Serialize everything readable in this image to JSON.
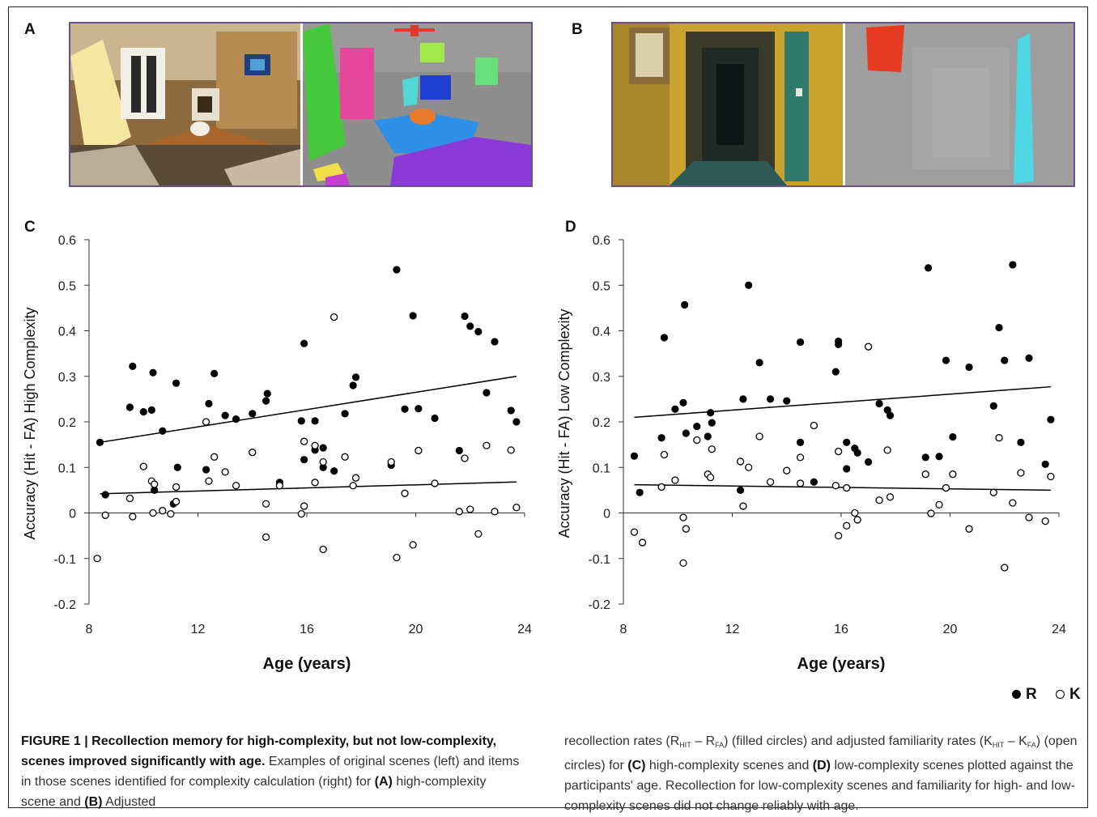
{
  "panels": {
    "a": {
      "letter": "A"
    },
    "b": {
      "letter": "B"
    },
    "c": {
      "letter": "C"
    },
    "d": {
      "letter": "D"
    }
  },
  "legend": {
    "r_label": "R",
    "k_label": "K"
  },
  "colors": {
    "filled": "#000000",
    "open_stroke": "#000000",
    "axis": "#333333",
    "photo_border": "#6a4f8f"
  },
  "caption": {
    "fig_label": "FIGURE 1 | ",
    "bold_title": "Recollection memory for high-complexity, but not low-complexity, scenes improved significantly with age.",
    "text1": " Examples of original scenes (left) and items in those scenes identified for complexity calculation (right) for ",
    "A_ref": "(A)",
    "text2": " high-complexity scene and ",
    "B_ref": "(B)",
    "text3": " low-complexity scene. Adjusted recollection rates (R",
    "sub_hit1": "HIT",
    "text4": " – R",
    "sub_fa1": "FA",
    "text5": ") (filled circles) and adjusted familiarity rates (K",
    "sub_hit2": "HIT",
    "text6": " – K",
    "sub_fa2": "FA",
    "text7": ") (open circles) for ",
    "C_ref": "(C)",
    "text8": " high-complexity scenes and ",
    "D_ref": "(D)",
    "text9": " low-complexity scenes plotted against the participants' age. Recollection for low-complexity scenes and familiarity for high- and low-complexity scenes did not change reliably with age."
  },
  "chart_data": [
    {
      "panel": "C",
      "type": "scatter",
      "xlabel": "Age (years)",
      "ylabel": "Accuracy (Hit - FA) High Complexity",
      "xlim": [
        8,
        24
      ],
      "ylim": [
        -0.2,
        0.6
      ],
      "xticks": [
        "8",
        "12",
        "16",
        "20",
        "24"
      ],
      "yticks": [
        "0.6",
        "0.5",
        "0.4",
        "0.3",
        "0.2",
        "0.1",
        "0",
        "-0.1",
        "-0.2"
      ],
      "series": [
        {
          "name": "R",
          "marker": "filled",
          "points": [
            [
              8.4,
              0.155
            ],
            [
              8.6,
              0.04
            ],
            [
              9.5,
              0.232
            ],
            [
              9.6,
              0.322
            ],
            [
              10.0,
              0.222
            ],
            [
              10.3,
              0.226
            ],
            [
              10.35,
              0.308
            ],
            [
              10.4,
              0.05
            ],
            [
              10.7,
              0.18
            ],
            [
              11.1,
              0.02
            ],
            [
              11.2,
              0.285
            ],
            [
              11.25,
              0.1
            ],
            [
              12.3,
              0.095
            ],
            [
              12.4,
              0.24
            ],
            [
              12.6,
              0.306
            ],
            [
              13.0,
              0.214
            ],
            [
              13.4,
              0.206
            ],
            [
              14.0,
              0.218
            ],
            [
              14.5,
              0.246
            ],
            [
              14.55,
              0.262
            ],
            [
              15.0,
              0.067
            ],
            [
              15.8,
              0.202
            ],
            [
              15.9,
              0.372
            ],
            [
              15.9,
              0.117
            ],
            [
              16.3,
              0.138
            ],
            [
              16.3,
              0.202
            ],
            [
              16.6,
              0.143
            ],
            [
              16.6,
              0.1
            ],
            [
              17.0,
              0.092
            ],
            [
              17.4,
              0.218
            ],
            [
              17.7,
              0.28
            ],
            [
              17.8,
              0.298
            ],
            [
              19.1,
              0.105
            ],
            [
              19.3,
              0.534
            ],
            [
              19.6,
              0.228
            ],
            [
              19.9,
              0.433
            ],
            [
              20.1,
              0.229
            ],
            [
              20.7,
              0.208
            ],
            [
              21.6,
              0.137
            ],
            [
              21.8,
              0.432
            ],
            [
              22.0,
              0.41
            ],
            [
              22.3,
              0.398
            ],
            [
              22.6,
              0.264
            ],
            [
              22.9,
              0.376
            ],
            [
              23.5,
              0.225
            ],
            [
              23.7,
              0.2
            ]
          ]
        },
        {
          "name": "K",
          "marker": "open",
          "points": [
            [
              8.3,
              -0.1
            ],
            [
              8.6,
              -0.005
            ],
            [
              9.5,
              0.032
            ],
            [
              9.6,
              -0.008
            ],
            [
              10.0,
              0.102
            ],
            [
              10.3,
              0.07
            ],
            [
              10.35,
              0.0
            ],
            [
              10.4,
              0.063
            ],
            [
              10.7,
              0.005
            ],
            [
              11.0,
              -0.002
            ],
            [
              11.2,
              0.025
            ],
            [
              11.2,
              0.057
            ],
            [
              12.3,
              0.2
            ],
            [
              12.4,
              0.07
            ],
            [
              12.6,
              0.123
            ],
            [
              13.0,
              0.09
            ],
            [
              13.4,
              0.06
            ],
            [
              14.0,
              0.133
            ],
            [
              14.5,
              0.02
            ],
            [
              14.5,
              -0.053
            ],
            [
              15.0,
              0.06
            ],
            [
              15.8,
              -0.002
            ],
            [
              15.9,
              0.157
            ],
            [
              15.9,
              0.015
            ],
            [
              16.3,
              0.067
            ],
            [
              16.3,
              0.148
            ],
            [
              16.6,
              0.112
            ],
            [
              16.6,
              -0.08
            ],
            [
              17.0,
              0.43
            ],
            [
              17.4,
              0.123
            ],
            [
              17.7,
              0.06
            ],
            [
              17.8,
              0.077
            ],
            [
              19.1,
              0.112
            ],
            [
              19.3,
              -0.098
            ],
            [
              19.6,
              0.043
            ],
            [
              19.9,
              -0.07
            ],
            [
              20.1,
              0.137
            ],
            [
              20.7,
              0.065
            ],
            [
              21.6,
              0.003
            ],
            [
              21.8,
              0.12
            ],
            [
              22.0,
              0.008
            ],
            [
              22.3,
              -0.046
            ],
            [
              22.6,
              0.148
            ],
            [
              22.9,
              0.003
            ],
            [
              23.5,
              0.138
            ],
            [
              23.7,
              0.012
            ]
          ]
        }
      ],
      "trendlines": [
        {
          "series": "R",
          "from": [
            8.4,
            0.155
          ],
          "to": [
            23.7,
            0.3
          ]
        },
        {
          "series": "K",
          "from": [
            8.4,
            0.042
          ],
          "to": [
            23.7,
            0.068
          ]
        }
      ]
    },
    {
      "panel": "D",
      "type": "scatter",
      "xlabel": "Age (years)",
      "ylabel": "Accuracy (Hit - FA) Low Complexity",
      "xlim": [
        8,
        24
      ],
      "ylim": [
        -0.2,
        0.6
      ],
      "xticks": [
        "8",
        "12",
        "16",
        "20",
        "24"
      ],
      "yticks": [
        "0.6",
        "0.5",
        "0.4",
        "0.3",
        "0.2",
        "0.1",
        "0",
        "-0.1",
        "-0.2"
      ],
      "series": [
        {
          "name": "R",
          "marker": "filled",
          "points": [
            [
              8.4,
              0.125
            ],
            [
              8.6,
              0.045
            ],
            [
              9.4,
              0.165
            ],
            [
              9.5,
              0.385
            ],
            [
              9.9,
              0.228
            ],
            [
              10.2,
              0.242
            ],
            [
              10.25,
              0.457
            ],
            [
              10.3,
              0.175
            ],
            [
              10.7,
              0.19
            ],
            [
              11.1,
              0.168
            ],
            [
              11.2,
              0.22
            ],
            [
              11.25,
              0.198
            ],
            [
              12.3,
              0.05
            ],
            [
              12.4,
              0.25
            ],
            [
              12.6,
              0.5
            ],
            [
              13.0,
              0.33
            ],
            [
              13.4,
              0.25
            ],
            [
              14.0,
              0.246
            ],
            [
              14.5,
              0.375
            ],
            [
              14.5,
              0.155
            ],
            [
              15.0,
              0.068
            ],
            [
              15.8,
              0.31
            ],
            [
              15.9,
              0.377
            ],
            [
              15.9,
              0.37
            ],
            [
              16.2,
              0.097
            ],
            [
              16.2,
              0.155
            ],
            [
              16.5,
              0.142
            ],
            [
              16.6,
              0.132
            ],
            [
              17.0,
              0.112
            ],
            [
              17.4,
              0.24
            ],
            [
              17.7,
              0.226
            ],
            [
              17.8,
              0.214
            ],
            [
              19.1,
              0.122
            ],
            [
              19.2,
              0.538
            ],
            [
              19.6,
              0.124
            ],
            [
              19.85,
              0.335
            ],
            [
              20.1,
              0.167
            ],
            [
              20.7,
              0.32
            ],
            [
              21.6,
              0.235
            ],
            [
              21.8,
              0.407
            ],
            [
              22.0,
              0.335
            ],
            [
              22.3,
              0.545
            ],
            [
              22.6,
              0.155
            ],
            [
              22.9,
              0.34
            ],
            [
              23.5,
              0.107
            ],
            [
              23.7,
              0.205
            ]
          ]
        },
        {
          "name": "K",
          "marker": "open",
          "points": [
            [
              8.4,
              -0.042
            ],
            [
              8.7,
              -0.065
            ],
            [
              9.4,
              0.057
            ],
            [
              9.5,
              0.128
            ],
            [
              9.9,
              0.072
            ],
            [
              10.2,
              -0.01
            ],
            [
              10.2,
              -0.11
            ],
            [
              10.3,
              -0.035
            ],
            [
              10.7,
              0.16
            ],
            [
              11.1,
              0.085
            ],
            [
              11.2,
              0.078
            ],
            [
              11.25,
              0.14
            ],
            [
              12.3,
              0.113
            ],
            [
              12.4,
              0.015
            ],
            [
              12.6,
              0.1
            ],
            [
              13.0,
              0.168
            ],
            [
              13.4,
              0.068
            ],
            [
              14.0,
              0.093
            ],
            [
              14.5,
              0.065
            ],
            [
              14.5,
              0.122
            ],
            [
              15.0,
              0.192
            ],
            [
              15.8,
              0.06
            ],
            [
              15.9,
              0.135
            ],
            [
              15.9,
              -0.05
            ],
            [
              16.2,
              0.055
            ],
            [
              16.2,
              -0.028
            ],
            [
              16.5,
              0.0
            ],
            [
              16.6,
              -0.015
            ],
            [
              17.0,
              0.365
            ],
            [
              17.4,
              0.028
            ],
            [
              17.7,
              0.138
            ],
            [
              17.8,
              0.035
            ],
            [
              19.1,
              0.085
            ],
            [
              19.3,
              -0.001
            ],
            [
              19.6,
              0.018
            ],
            [
              19.85,
              0.055
            ],
            [
              20.1,
              0.085
            ],
            [
              20.7,
              -0.035
            ],
            [
              21.6,
              0.045
            ],
            [
              21.8,
              0.165
            ],
            [
              22.0,
              -0.12
            ],
            [
              22.3,
              0.022
            ],
            [
              22.6,
              0.088
            ],
            [
              22.9,
              -0.01
            ],
            [
              23.5,
              -0.018
            ],
            [
              23.7,
              0.08
            ]
          ]
        }
      ],
      "trendlines": [
        {
          "series": "R",
          "from": [
            8.4,
            0.21
          ],
          "to": [
            23.7,
            0.277
          ]
        },
        {
          "series": "K",
          "from": [
            8.4,
            0.062
          ],
          "to": [
            23.7,
            0.05
          ]
        }
      ]
    }
  ]
}
